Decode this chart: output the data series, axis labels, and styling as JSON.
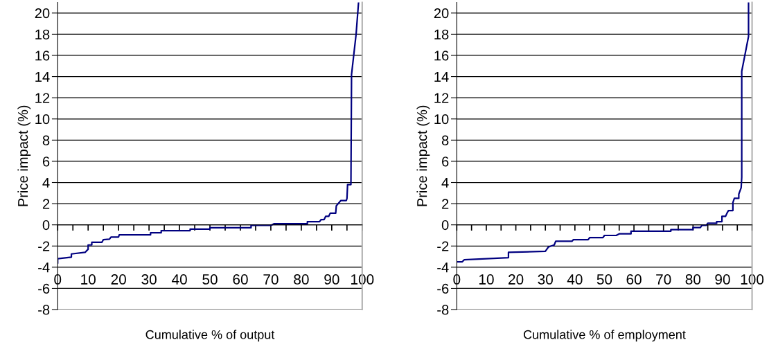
{
  "chart_data": [
    {
      "type": "step",
      "xlabel": "Cumulative % of output",
      "ylabel": "Price impact (%)",
      "xlim": [
        0,
        100
      ],
      "ylim": [
        -8,
        21
      ],
      "xticks": [
        0,
        {
          "value": 5,
          "label": null
        },
        10,
        {
          "value": 15,
          "label": null
        },
        20,
        {
          "value": 25,
          "label": null
        },
        30,
        {
          "value": 35,
          "label": null
        },
        40,
        {
          "value": 45,
          "label": null
        },
        50,
        {
          "value": 55,
          "label": null
        },
        60,
        {
          "value": 65,
          "label": null
        },
        70,
        {
          "value": 75,
          "label": null
        },
        80,
        {
          "value": 85,
          "label": null
        },
        90,
        {
          "value": 95,
          "label": null
        },
        100
      ],
      "yticks": [
        -8,
        -6,
        -4,
        -2,
        0,
        2,
        4,
        6,
        8,
        10,
        12,
        14,
        16,
        18,
        20
      ],
      "grid": "y",
      "legend": false,
      "marker": "none",
      "line_style": "solid",
      "series": [
        {
          "color": "#000080",
          "x": [
            0,
            0,
            4.5,
            4.5,
            9,
            10,
            10,
            11.2,
            11.2,
            14.5,
            15,
            17,
            17.5,
            20,
            20.2,
            30.5,
            30.5,
            34,
            34,
            43.5,
            43.5,
            50,
            50,
            63.5,
            63.5,
            70,
            71,
            82,
            82,
            86,
            86.5,
            87.5,
            88,
            89,
            89.5,
            91.3,
            91.5,
            93,
            94.8,
            95,
            95.2,
            96.3,
            96.5,
            98,
            98.8
          ],
          "values": [
            -3.6,
            -3.2,
            -3.05,
            -2.75,
            -2.6,
            -2.3,
            -1.9,
            -1.9,
            -1.65,
            -1.65,
            -1.4,
            -1.35,
            -1.15,
            -1.15,
            -0.95,
            -0.95,
            -0.75,
            -0.75,
            -0.55,
            -0.55,
            -0.4,
            -0.4,
            -0.28,
            -0.28,
            -0.05,
            -0.05,
            0.1,
            0.1,
            0.3,
            0.3,
            0.5,
            0.5,
            0.8,
            0.8,
            1.1,
            1.1,
            1.8,
            2.3,
            2.3,
            2.5,
            3.8,
            3.8,
            14.2,
            18,
            21
          ]
        }
      ]
    },
    {
      "type": "step",
      "xlabel": "Cumulative % of employment",
      "ylabel": "Price impact (%)",
      "xlim": [
        0,
        100
      ],
      "ylim": [
        -8,
        21
      ],
      "xticks": [
        0,
        {
          "value": 5,
          "label": null
        },
        10,
        {
          "value": 15,
          "label": null
        },
        20,
        {
          "value": 25,
          "label": null
        },
        30,
        {
          "value": 35,
          "label": null
        },
        40,
        {
          "value": 45,
          "label": null
        },
        50,
        {
          "value": 55,
          "label": null
        },
        60,
        {
          "value": 65,
          "label": null
        },
        70,
        {
          "value": 75,
          "label": null
        },
        80,
        {
          "value": 85,
          "label": null
        },
        90,
        {
          "value": 95,
          "label": null
        },
        100
      ],
      "yticks": [
        -8,
        -6,
        -4,
        -2,
        0,
        2,
        4,
        6,
        8,
        10,
        12,
        14,
        16,
        18,
        20
      ],
      "grid": "y",
      "legend": false,
      "marker": "none",
      "line_style": "solid",
      "series": [
        {
          "color": "#000080",
          "x": [
            0,
            1.8,
            2.5,
            17.5,
            17.5,
            30,
            31,
            33,
            33.5,
            39,
            39.5,
            44.5,
            45,
            49.5,
            50,
            54,
            55,
            59,
            59,
            72.5,
            72.5,
            80,
            80,
            82.5,
            83,
            84.5,
            85,
            88,
            88,
            89.8,
            89.8,
            91,
            91.5,
            92,
            93.5,
            93.5,
            94,
            95.5,
            95.5,
            96.3,
            96.5,
            96.5,
            98.8,
            98.8
          ],
          "values": [
            -3.5,
            -3.5,
            -3.3,
            -3.1,
            -2.6,
            -2.5,
            -2.1,
            -1.9,
            -1.55,
            -1.55,
            -1.4,
            -1.4,
            -1.2,
            -1.2,
            -1.0,
            -1.0,
            -0.85,
            -0.85,
            -0.6,
            -0.6,
            -0.45,
            -0.45,
            -0.25,
            -0.25,
            -0.05,
            -0.05,
            0.15,
            0.15,
            0.3,
            0.3,
            0.8,
            0.8,
            1.1,
            1.35,
            1.35,
            2.1,
            2.5,
            2.5,
            2.9,
            3.5,
            4.5,
            14.5,
            17.8,
            21
          ]
        }
      ]
    }
  ]
}
